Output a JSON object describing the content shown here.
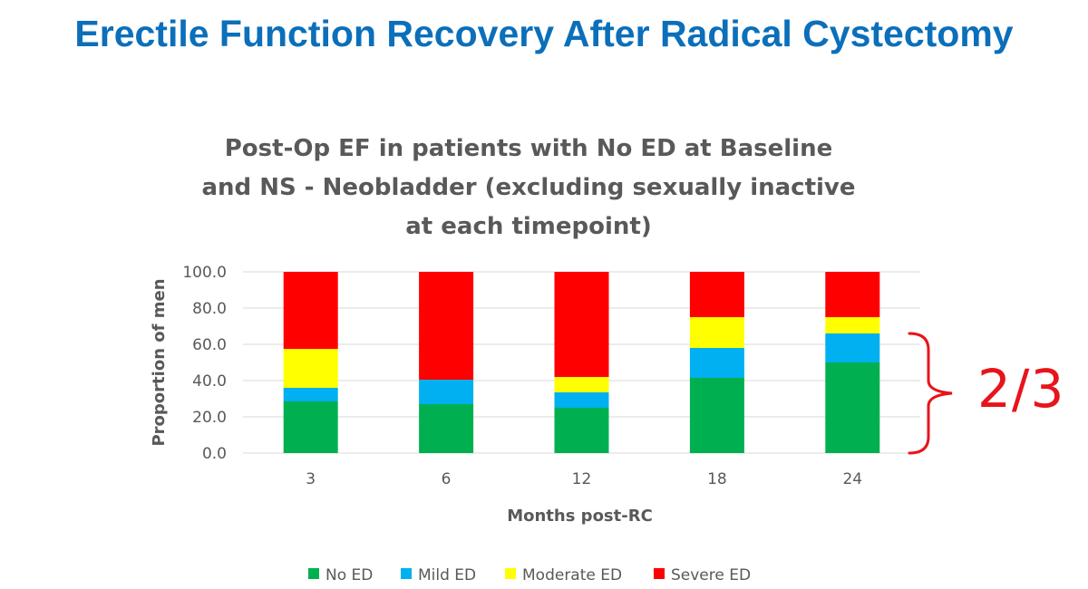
{
  "slide": {
    "title": "Erectile Function Recovery After Radical Cystectomy",
    "annotation": "2/3"
  },
  "chart_data": {
    "type": "bar",
    "stacked": true,
    "title_lines": [
      "Post-Op EF in patients with No ED at Baseline",
      "and NS - Neobladder (excluding sexually inactive",
      "at each timepoint)"
    ],
    "xlabel": "Months post-RC",
    "ylabel": "Proportion of men",
    "ylim": [
      0,
      100
    ],
    "yticks": [
      "0.0",
      "20.0",
      "40.0",
      "60.0",
      "80.0",
      "100.0"
    ],
    "categories": [
      "3",
      "6",
      "12",
      "18",
      "24"
    ],
    "grid": true,
    "legend_position": "bottom",
    "series": [
      {
        "name": "No ED",
        "color": "#00b050",
        "values": [
          28.5,
          27,
          25,
          41.5,
          50
        ]
      },
      {
        "name": "Mild ED",
        "color": "#00b0f0",
        "values": [
          7.5,
          13.5,
          8.5,
          16.5,
          16
        ]
      },
      {
        "name": "Moderate ED",
        "color": "#ffff00",
        "values": [
          21.5,
          0,
          8.5,
          17,
          9
        ]
      },
      {
        "name": "Severe ED",
        "color": "#ff0000",
        "values": [
          42.5,
          59.5,
          58,
          25,
          25
        ]
      }
    ]
  },
  "colors": {
    "title": "#0b6fba",
    "annotation": "#e8141b",
    "text": "#595959",
    "grid": "#d9d9d9"
  }
}
